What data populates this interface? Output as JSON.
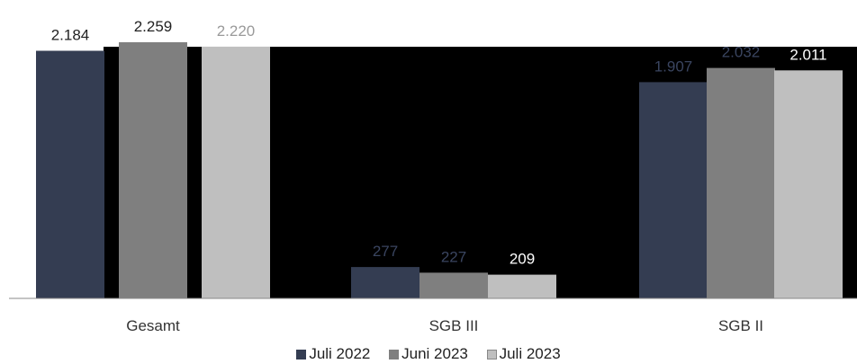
{
  "chart_data": {
    "type": "bar",
    "categories": [
      "Gesamt",
      "SGB III",
      "SGB II"
    ],
    "series": [
      {
        "name": "Juli 2022",
        "values": [
          2184,
          277,
          1907
        ],
        "labels": [
          "2.184",
          "277",
          "1.907"
        ],
        "color": "#343d52"
      },
      {
        "name": "Juni 2023",
        "values": [
          2259,
          227,
          2032
        ],
        "labels": [
          "2.259",
          "227",
          "2.032"
        ],
        "color": "#7f7f7f"
      },
      {
        "name": "Juli 2023",
        "values": [
          2220,
          209,
          2011
        ],
        "labels": [
          "2.220",
          "209",
          "2.011"
        ],
        "color": "#bfbfbf"
      }
    ],
    "ylim": [
      0,
      2259
    ],
    "background": "#000000",
    "grid": false,
    "legend_position": "bottom"
  }
}
